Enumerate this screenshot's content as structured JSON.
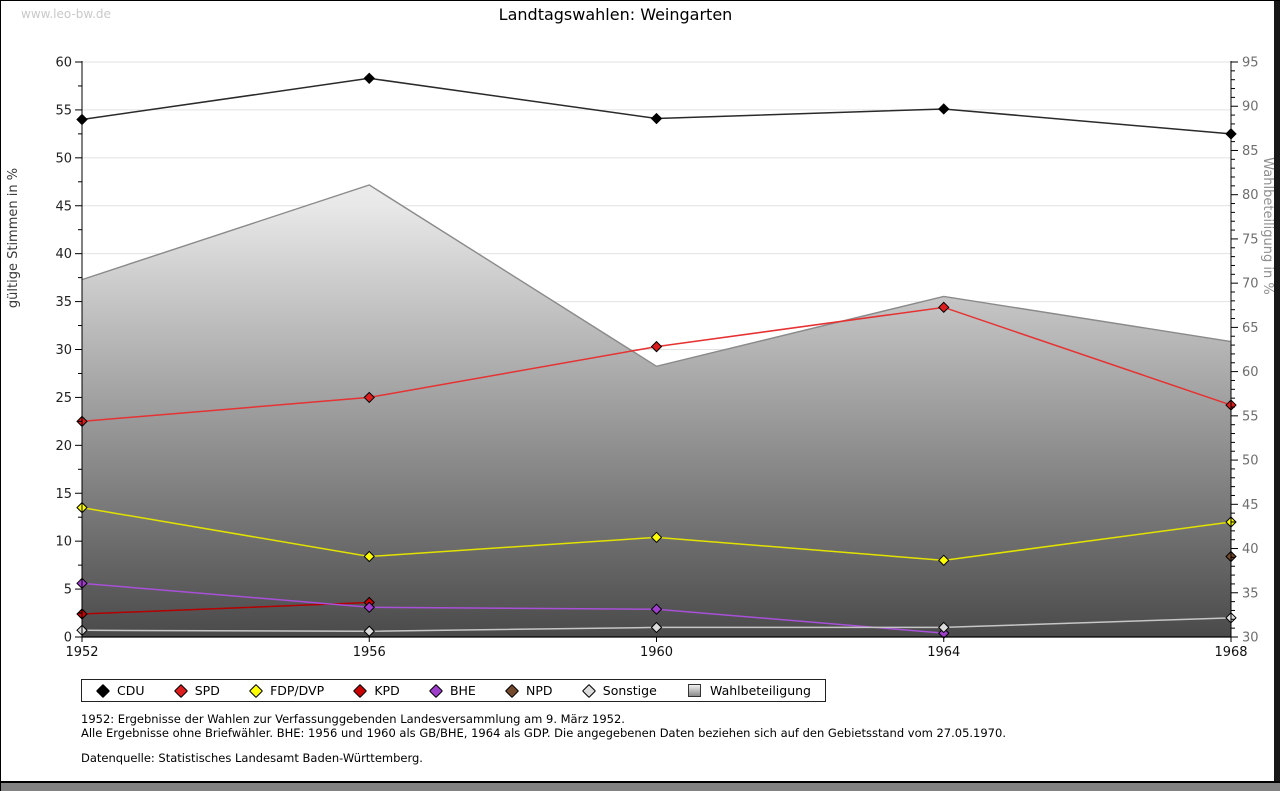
{
  "window": {
    "watermark": "www.leo-bw.de"
  },
  "chart_data": {
    "type": "line",
    "title": "Landtagswahlen: Weingarten",
    "categories": [
      1952,
      1956,
      1960,
      1964,
      1968
    ],
    "grid": true,
    "legend_position": "bottom",
    "axes": {
      "left": {
        "label": "gültige Stimmen in %",
        "min": 0,
        "max": 60,
        "tick_step": 5,
        "minor_step": 2.5
      },
      "right": {
        "label": "Wahlbeteiligung in %",
        "min": 30,
        "max": 95,
        "tick_step": 5,
        "minor_step": 1
      }
    },
    "series": [
      {
        "name": "Wahlbeteiligung",
        "type": "area",
        "axis": "right",
        "border_color": "#8a8a8a",
        "marker": "square",
        "values": [
          70.4,
          81.1,
          60.6,
          68.5,
          63.4
        ]
      },
      {
        "name": "CDU",
        "type": "line",
        "axis": "left",
        "line_color": "#2a2a2a",
        "marker_color": "#000000",
        "marker": "diamond",
        "values": [
          54.0,
          58.3,
          54.1,
          55.1,
          52.5
        ]
      },
      {
        "name": "SPD",
        "type": "line",
        "axis": "left",
        "line_color": "#e63232",
        "marker_color": "#dc1e1e",
        "marker": "diamond",
        "values": [
          22.5,
          25.0,
          30.3,
          34.4,
          24.2
        ]
      },
      {
        "name": "FDP/DVP",
        "type": "line",
        "axis": "left",
        "line_color": "#e2e200",
        "marker_color": "#ffff00",
        "marker": "diamond",
        "values": [
          13.5,
          8.4,
          10.4,
          8.0,
          12.0
        ]
      },
      {
        "name": "KPD",
        "type": "line",
        "axis": "left",
        "line_color": "#b40000",
        "marker_color": "#c80000",
        "marker": "diamond",
        "values": [
          2.4,
          3.6,
          null,
          null,
          null
        ]
      },
      {
        "name": "BHE",
        "type": "line",
        "axis": "left",
        "line_color": "#a850d8",
        "marker_color": "#9f3ecb",
        "marker": "diamond",
        "values": [
          5.6,
          3.1,
          2.9,
          0.4,
          null
        ]
      },
      {
        "name": "NPD",
        "type": "line",
        "axis": "left",
        "line_color": "#73492c",
        "marker_color": "#73492c",
        "marker": "diamond",
        "values": [
          null,
          null,
          null,
          null,
          8.4
        ]
      },
      {
        "name": "Sonstige",
        "type": "line",
        "axis": "left",
        "line_color": "#c6c6c6",
        "marker_color": "#dcdcdc",
        "marker": "diamond",
        "values": [
          0.7,
          0.6,
          1.0,
          1.0,
          2.0
        ]
      }
    ],
    "legend_order": [
      "CDU",
      "SPD",
      "FDP/DVP",
      "KPD",
      "BHE",
      "NPD",
      "Sonstige",
      "Wahlbeteiligung"
    ]
  },
  "footnotes": {
    "line1": "1952: Ergebnisse der Wahlen zur Verfassunggebenden Landesversammlung am 9. März 1952.",
    "line2": "Alle Ergebnisse ohne Briefwähler. BHE: 1956 und 1960 als GB/BHE, 1964 als GDP. Die angegebenen Daten beziehen sich auf den Gebietsstand vom 27.05.1970.",
    "source": "Datenquelle: Statistisches Landesamt Baden-Württemberg."
  }
}
